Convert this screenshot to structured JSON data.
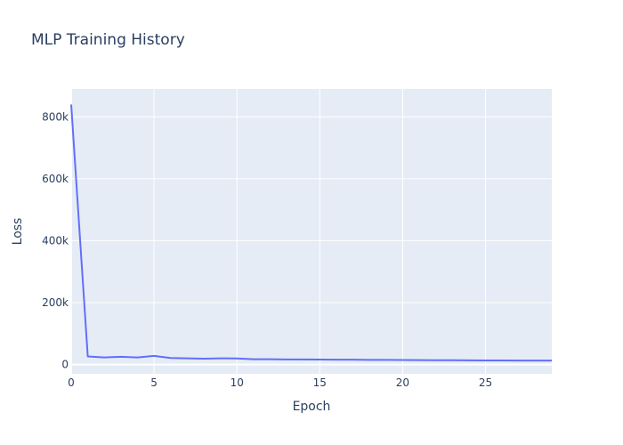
{
  "chart_data": {
    "type": "line",
    "title": "MLP Training History",
    "xlabel": "Epoch",
    "ylabel": "Loss",
    "xlim": [
      0,
      29
    ],
    "ylim": [
      -30000,
      890000
    ],
    "x_ticks": [
      0,
      5,
      10,
      15,
      20,
      25
    ],
    "y_ticks": [
      0,
      200000,
      400000,
      600000,
      800000
    ],
    "y_tick_labels": [
      "0",
      "200k",
      "400k",
      "600k",
      "800k"
    ],
    "colors": {
      "line": "#636efa",
      "plot_bg": "#e5ecf6",
      "grid": "#ffffff",
      "text": "#2a3f5f"
    },
    "series": [
      {
        "x": [
          0,
          1,
          2,
          3,
          4,
          5,
          6,
          7,
          8,
          9,
          10,
          11,
          12,
          13,
          14,
          15,
          16,
          17,
          18,
          19,
          20,
          21,
          22,
          23,
          24,
          25,
          26,
          27,
          28,
          29
        ],
        "values": [
          840000,
          26000,
          23000,
          25000,
          23000,
          28000,
          21000,
          20000,
          19000,
          20000,
          19500,
          17000,
          17000,
          16500,
          16500,
          16000,
          15500,
          15500,
          15000,
          14800,
          14500,
          14200,
          14000,
          13800,
          13500,
          13200,
          13000,
          12800,
          12700,
          12600
        ]
      }
    ]
  }
}
